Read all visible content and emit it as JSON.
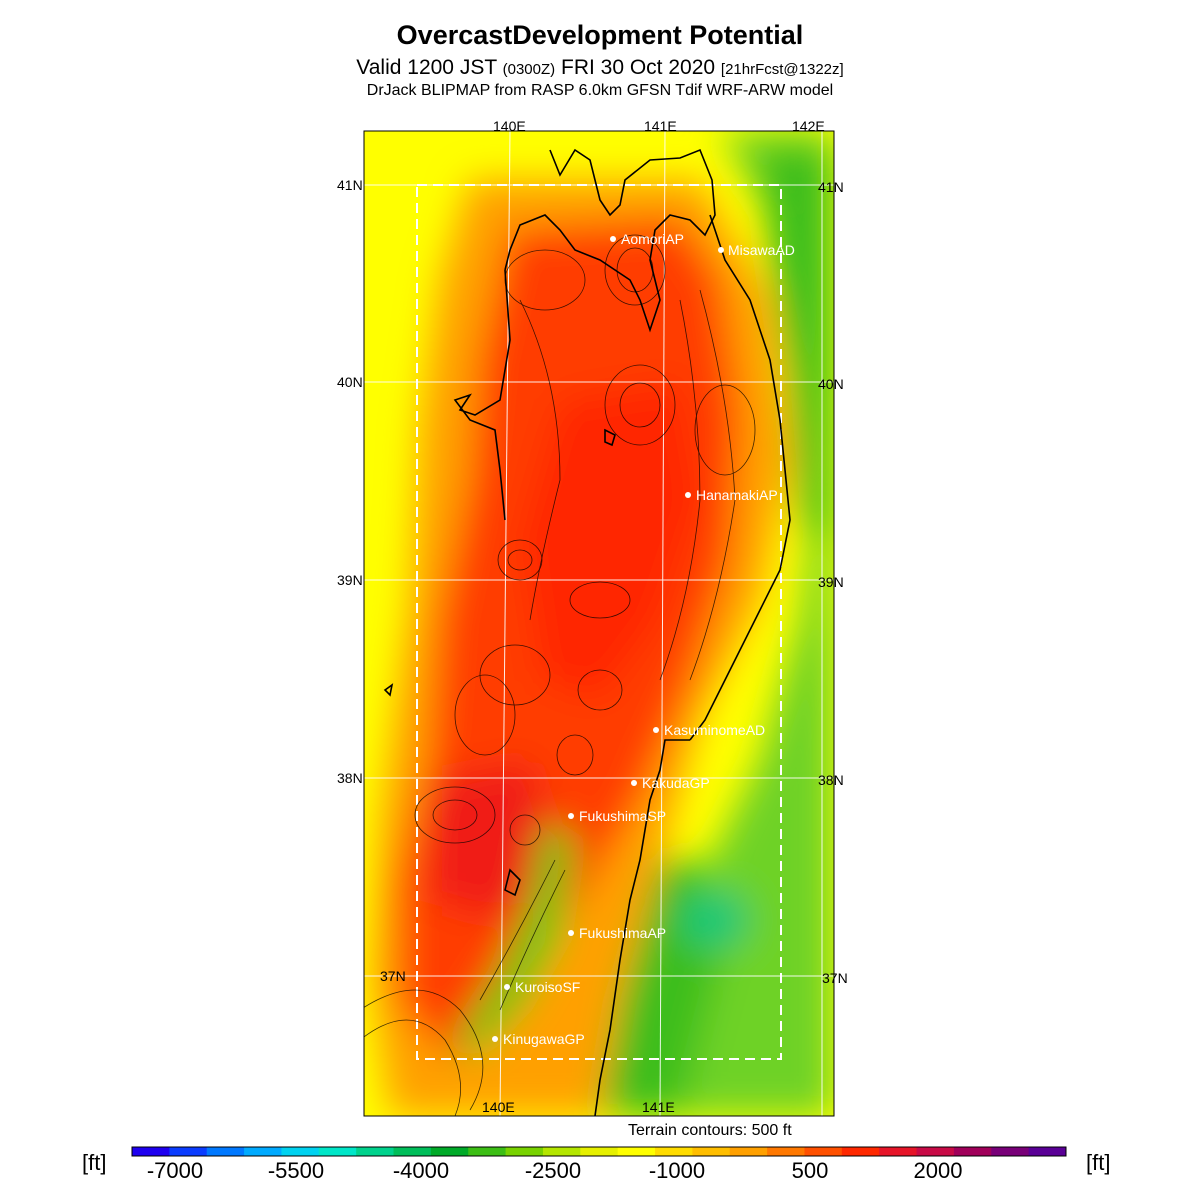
{
  "title": "OvercastDevelopment Potential",
  "subtitle": {
    "main_a": "Valid 1200 JST ",
    "small_a": "(0300Z)",
    "main_b": " FRI 30 Oct 2020 ",
    "small_b": "[21hrFcst@1322z]"
  },
  "model_line": "DrJack BLIPMAP from RASP 6.0km GFSN Tdif WRF-ARW model",
  "lon_labels": [
    "140E",
    "141E",
    "142E"
  ],
  "lon_labels_bottom": [
    "140E",
    "141E"
  ],
  "lat_labels": [
    "41N",
    "40N",
    "39N",
    "38N",
    "37N"
  ],
  "stations": [
    "AomoriAP",
    "MisawaAD",
    "HanamakiAP",
    "KasuminomeAD",
    "KakudaGP",
    "FukushimaSP",
    "FukushimaAP",
    "KuroisoSF",
    "KinugawaGP"
  ],
  "terrain_note": "Terrain contours: 500 ft",
  "colorbar": {
    "unit": "[ft]",
    "tick_labels": [
      "-7000",
      "-5500",
      "-4000",
      "-2500",
      "-1000",
      "500",
      "2000"
    ],
    "colors": [
      "#1e00f0",
      "#0a3cff",
      "#0078ff",
      "#00aaff",
      "#00d2f0",
      "#00e6c8",
      "#00d28c",
      "#00be5a",
      "#00aa28",
      "#3cbe14",
      "#78d200",
      "#b4e600",
      "#e6f000",
      "#ffff00",
      "#ffdc00",
      "#ffbe00",
      "#ffa000",
      "#ff7800",
      "#ff5000",
      "#ff2800",
      "#e61428",
      "#c80a46",
      "#a0005a",
      "#780078",
      "#5a0096"
    ]
  }
}
